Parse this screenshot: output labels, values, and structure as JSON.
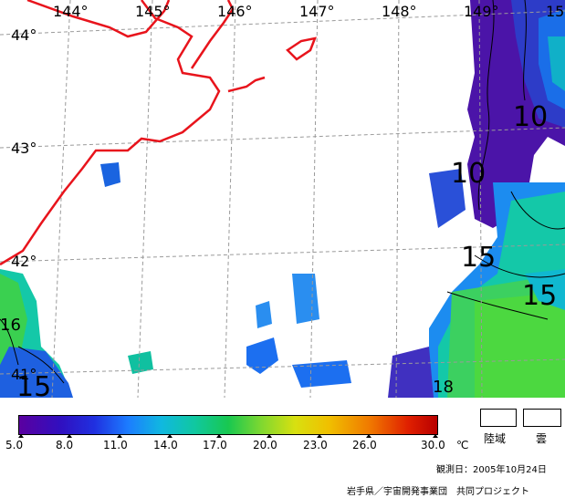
{
  "map": {
    "longitude_labels": [
      "144°",
      "145°",
      "146°",
      "147°",
      "148°",
      "149°",
      "15"
    ],
    "latitude_labels": [
      "44°",
      "43°",
      "42°",
      "41°"
    ],
    "contour_labels": [
      "10",
      "10",
      "15",
      "15",
      "16",
      "15",
      "18"
    ],
    "coastline_color": "#e8141c",
    "grid_color": "#9a9a9a"
  },
  "colorbar": {
    "ticks": [
      "5.0",
      "8.0",
      "11.0",
      "14.0",
      "17.0",
      "20.0",
      "23.0",
      "26.0",
      "30.0"
    ],
    "unit": "℃",
    "min": 5.0,
    "max": 30.0,
    "colors": [
      "#5a00a0",
      "#2828d8",
      "#1c7cff",
      "#10c8c8",
      "#18c850",
      "#a0e028",
      "#f0e000",
      "#f07800",
      "#b80000"
    ]
  },
  "key": {
    "land_label": "陸域",
    "cloud_label": "雲"
  },
  "observation_date": "観測日：2005年10月24日",
  "credit": "岩手県／宇宙開発事業団　共同プロジェクト"
}
